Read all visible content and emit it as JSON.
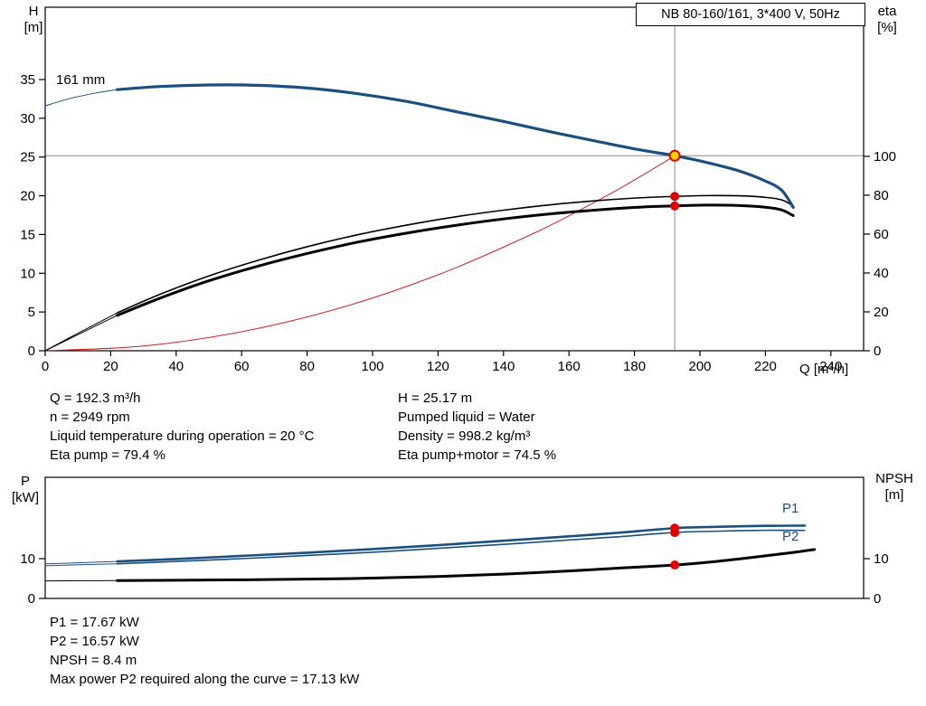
{
  "title_box": {
    "text": "NB 80-160/161, 3*400 V, 50Hz"
  },
  "chart_data": [
    {
      "id": "qh-eta",
      "type": "line",
      "x_axis": {
        "label": "Q [m³/h]",
        "min": 0,
        "max": 250,
        "show_tick_labels": true,
        "ticks": [
          0,
          20,
          40,
          60,
          80,
          100,
          120,
          140,
          160,
          180,
          200,
          220,
          240
        ]
      },
      "y_left": {
        "label_line1": "H",
        "label_line2": "[m]",
        "min": 0,
        "max": 44.33,
        "ticks": [
          0,
          5,
          10,
          15,
          20,
          25,
          30,
          35
        ]
      },
      "y_right": {
        "label_line1": "eta",
        "label_line2": "[%]",
        "min": 0,
        "max": 176.7,
        "ticks": [
          0,
          20,
          40,
          60,
          80,
          100
        ]
      },
      "annotations": [
        {
          "text": "161 mm"
        }
      ],
      "crosshair": {
        "q": 192.3,
        "h": 25.17,
        "color": "#8c8c8c"
      },
      "series": [
        {
          "name": "system-curve",
          "axis": "left",
          "color": "#cc2222",
          "segments": [
            {
              "width": 1,
              "points": [
                [
                  0,
                  0
                ],
                [
                  30,
                  0.61
                ],
                [
                  60,
                  2.45
                ],
                [
                  90,
                  5.51
                ],
                [
                  120,
                  9.8
                ],
                [
                  150,
                  15.31
                ],
                [
                  170,
                  19.66
                ],
                [
                  182,
                  22.54
                ],
                [
                  192.3,
                  25.17
                ]
              ]
            }
          ]
        },
        {
          "name": "eta-pump",
          "axis": "right",
          "color": "#000000",
          "segments": [
            {
              "width": 1,
              "points": [
                [
                  0,
                  0
                ],
                [
                  10,
                  9
                ],
                [
                  22,
                  19.5
                ]
              ]
            },
            {
              "width": 1.6,
              "points": [
                [
                  22,
                  19.5
                ],
                [
                  35,
                  29
                ],
                [
                  50,
                  38.5
                ],
                [
                  65,
                  46.5
                ],
                [
                  80,
                  53.5
                ],
                [
                  95,
                  59.5
                ],
                [
                  110,
                  64.5
                ],
                [
                  125,
                  68.8
                ],
                [
                  140,
                  72.3
                ],
                [
                  155,
                  75.2
                ],
                [
                  170,
                  77.4
                ],
                [
                  182,
                  78.7
                ],
                [
                  192.3,
                  79.4
                ],
                [
                  202,
                  79.8
                ],
                [
                  212,
                  79.7
                ],
                [
                  220,
                  78.9
                ],
                [
                  225,
                  77.6
                ],
                [
                  228.5,
                  74.5
                ]
              ]
            }
          ]
        },
        {
          "name": "eta-pump-motor",
          "axis": "right",
          "color": "#000000",
          "segments": [
            {
              "width": 1,
              "points": [
                [
                  0,
                  0
                ],
                [
                  10,
                  8.3
                ],
                [
                  22,
                  18.2
                ]
              ]
            },
            {
              "width": 3,
              "points": [
                [
                  22,
                  18.2
                ],
                [
                  35,
                  27
                ],
                [
                  50,
                  36
                ],
                [
                  65,
                  43.5
                ],
                [
                  80,
                  50
                ],
                [
                  95,
                  55.7
                ],
                [
                  110,
                  60.4
                ],
                [
                  125,
                  64.4
                ],
                [
                  140,
                  67.8
                ],
                [
                  155,
                  70.5
                ],
                [
                  170,
                  72.6
                ],
                [
                  182,
                  73.9
                ],
                [
                  192.3,
                  74.5
                ],
                [
                  202,
                  74.9
                ],
                [
                  212,
                  74.7
                ],
                [
                  220,
                  73.8
                ],
                [
                  225,
                  72.4
                ],
                [
                  228.5,
                  69.5
                ]
              ]
            }
          ]
        },
        {
          "name": "head-curve-161mm",
          "axis": "left",
          "color": "#1b4f7e",
          "segments": [
            {
              "width": 1,
              "points": [
                [
                  0,
                  31.6
                ],
                [
                  8,
                  32.6
                ],
                [
                  16,
                  33.3
                ],
                [
                  22,
                  33.7
                ]
              ]
            },
            {
              "width": 3.2,
              "points": [
                [
                  22,
                  33.7
                ],
                [
                  35,
                  34.1
                ],
                [
                  50,
                  34.3
                ],
                [
                  65,
                  34.25
                ],
                [
                  80,
                  33.9
                ],
                [
                  95,
                  33.2
                ],
                [
                  110,
                  32.2
                ],
                [
                  125,
                  30.9
                ],
                [
                  140,
                  29.6
                ],
                [
                  155,
                  28.2
                ],
                [
                  170,
                  26.9
                ],
                [
                  182,
                  25.9
                ],
                [
                  192.3,
                  25.17
                ],
                [
                  202,
                  24.3
                ],
                [
                  212,
                  23.2
                ],
                [
                  220,
                  21.9
                ],
                [
                  225,
                  20.7
                ],
                [
                  228.5,
                  18.5
                ]
              ]
            }
          ]
        }
      ],
      "markers": [
        {
          "axis": "right",
          "q": 192.3,
          "value": 79.4,
          "color": "#e00000"
        },
        {
          "axis": "right",
          "q": 192.3,
          "value": 74.5,
          "color": "#e00000"
        }
      ],
      "duty_point": {
        "q": 192.3,
        "value": 25.17,
        "fill": "#ffd400",
        "stroke": "#e00000"
      }
    },
    {
      "id": "power-npsh",
      "type": "line",
      "x_axis": {
        "label": "",
        "min": 0,
        "max": 250,
        "show_tick_labels": false,
        "ticks": []
      },
      "y_left": {
        "label_line1": "P",
        "label_line2": "[kW]",
        "min": 0,
        "max": 30.45,
        "ticks": [
          0,
          10
        ]
      },
      "y_right": {
        "label_line1": "NPSH",
        "label_line2": "[m]",
        "min": 0,
        "max": 30.45,
        "ticks": [
          0,
          10
        ]
      },
      "series": [
        {
          "name": "npsh",
          "axis": "right",
          "color": "#000000",
          "segments": [
            {
              "width": 1,
              "points": [
                [
                  0,
                  4.4
                ],
                [
                  12,
                  4.45
                ],
                [
                  22,
                  4.5
                ]
              ]
            },
            {
              "width": 3,
              "points": [
                [
                  22,
                  4.5
                ],
                [
                  50,
                  4.62
                ],
                [
                  80,
                  4.85
                ],
                [
                  100,
                  5.1
                ],
                [
                  120,
                  5.5
                ],
                [
                  140,
                  6.1
                ],
                [
                  160,
                  6.9
                ],
                [
                  175,
                  7.6
                ],
                [
                  192.3,
                  8.4
                ],
                [
                  205,
                  9.3
                ],
                [
                  218,
                  10.5
                ],
                [
                  228,
                  11.5
                ],
                [
                  235,
                  12.3
                ]
              ]
            }
          ]
        },
        {
          "name": "p2",
          "axis": "left",
          "color": "#1b4f7e",
          "segments": [
            {
              "width": 1,
              "points": [
                [
                  0,
                  8.2
                ],
                [
                  12,
                  8.5
                ],
                [
                  22,
                  8.7
                ]
              ]
            },
            {
              "width": 1.6,
              "points": [
                [
                  22,
                  8.7
                ],
                [
                  40,
                  9.3
                ],
                [
                  60,
                  10.0
                ],
                [
                  80,
                  10.8
                ],
                [
                  100,
                  11.6
                ],
                [
                  120,
                  12.6
                ],
                [
                  140,
                  13.6
                ],
                [
                  160,
                  14.7
                ],
                [
                  175,
                  15.5
                ],
                [
                  192.3,
                  16.57
                ],
                [
                  205,
                  16.9
                ],
                [
                  220,
                  17.13
                ],
                [
                  232,
                  17.1
                ]
              ]
            }
          ]
        },
        {
          "name": "p1",
          "axis": "left",
          "color": "#1b4f7e",
          "segments": [
            {
              "width": 1,
              "points": [
                [
                  0,
                  8.7
                ],
                [
                  12,
                  9.0
                ],
                [
                  22,
                  9.3
                ]
              ]
            },
            {
              "width": 2.6,
              "points": [
                [
                  22,
                  9.3
                ],
                [
                  40,
                  9.9
                ],
                [
                  60,
                  10.7
                ],
                [
                  80,
                  11.5
                ],
                [
                  100,
                  12.4
                ],
                [
                  120,
                  13.4
                ],
                [
                  140,
                  14.5
                ],
                [
                  160,
                  15.6
                ],
                [
                  175,
                  16.5
                ],
                [
                  192.3,
                  17.67
                ],
                [
                  205,
                  18.0
                ],
                [
                  220,
                  18.25
                ],
                [
                  232,
                  18.3
                ]
              ]
            }
          ]
        }
      ],
      "markers": [
        {
          "axis": "left",
          "q": 192.3,
          "value": 17.67,
          "color": "#e00000"
        },
        {
          "axis": "left",
          "q": 192.3,
          "value": 16.57,
          "color": "#e00000"
        },
        {
          "axis": "right",
          "q": 192.3,
          "value": 8.4,
          "color": "#e00000"
        }
      ],
      "series_labels": [
        {
          "text": "P1",
          "color": "#1b4f7e"
        },
        {
          "text": "P2",
          "color": "#1b4f7e"
        }
      ]
    }
  ],
  "info_block": {
    "left": [
      "Q = 192.3 m³/h",
      "n = 2949 rpm",
      "Liquid temperature during operation = 20 °C",
      "Eta pump = 79.4 %"
    ],
    "right": [
      "H = 25.17 m",
      "Pumped liquid = Water",
      "Density = 998.2 kg/m³",
      "Eta pump+motor = 74.5 %"
    ]
  },
  "results_block": {
    "lines": [
      "P1 = 17.67 kW",
      "P2 = 16.57 kW",
      "NPSH = 8.4 m",
      "Max power P2 required along the curve = 17.13 kW"
    ]
  }
}
